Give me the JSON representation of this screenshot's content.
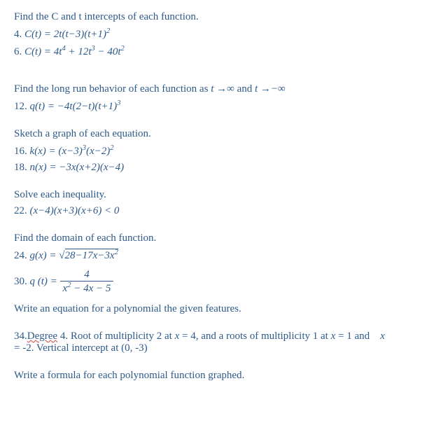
{
  "colors": {
    "text": "#2e5a8a",
    "background": "#ffffff",
    "wavy_underline": "#d04040"
  },
  "typography": {
    "font_family": "Times New Roman",
    "base_fontsize": 15
  },
  "sections": [
    {
      "header": "Find the C and t intercepts of each function.",
      "problems": [
        {
          "num": "4.",
          "eq_html": "C(t) = 2t(t−3)(t+1)<sup>2</sup>"
        },
        {
          "num": "6.",
          "eq_html": "C(t) = 4t<sup>4</sup> + 12t<sup>3</sup> − 40t<sup>2</sup>"
        }
      ]
    },
    {
      "header_html": "Find the long run behavior of each function as <span class='eq'>t →∞</span> and <span class='eq'>t →−∞</span>",
      "problems": [
        {
          "num": "12.",
          "eq_html": "q(t) = −4t(2−t)(t+1)<sup>3</sup>"
        }
      ]
    },
    {
      "header": "Sketch a graph of each equation.",
      "problems": [
        {
          "num": "16.",
          "eq_html": "k(x) = (x−3)<sup>3</sup>(x−2)<sup>2</sup>"
        },
        {
          "num": "18.",
          "eq_html": "n(x) = −3x(x+2)(x−4)"
        }
      ]
    },
    {
      "header": "Solve each inequality.",
      "problems": [
        {
          "num": "22.",
          "eq_html": "(x−4)(x+3)(x+6) < 0"
        }
      ]
    },
    {
      "header": "Find the domain of each function.",
      "problems": [
        {
          "num": "24.",
          "eq_html": "g(x) = <span class='sqrt'>√<span class='sqrt-body'>28−17x−3x<sup>2</sup></span></span>"
        },
        {
          "num": "30.",
          "eq_html": "q (t) = <span class='frac'><span class='num'>4</span><span class='den'>x<sup>2</sup> − 4x − 5</span></span>"
        }
      ]
    },
    {
      "header": "Write an equation for a polynomial the given features.",
      "problems": []
    }
  ],
  "problem34": {
    "num_html": "34.<span class='wavy'>Degree</span>",
    "rest": " 4.  Root of multiplicity 2 at ",
    "part2": " = 4, and a roots of multiplicity 1 at ",
    "part3": " = 1 and    ",
    "part4": " = -2.  Vertical intercept at (0, -3)",
    "x": "x"
  },
  "final_header": "Write a formula for each polynomial function graphed."
}
